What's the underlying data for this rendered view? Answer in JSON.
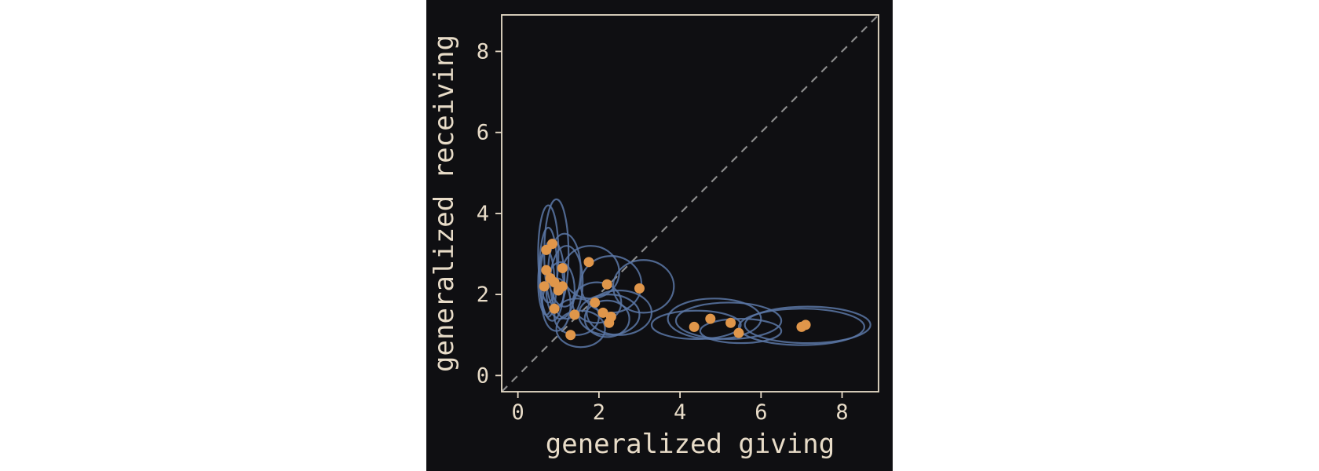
{
  "colors": {
    "background": "#0f0f12",
    "axes": "#e8dcc8",
    "ellipse": "#5b77a6",
    "point": "#e0964a",
    "diagonal": "#8a8a8a"
  },
  "chart_data": {
    "type": "scatter",
    "title": "",
    "xlabel": "generalized giving",
    "ylabel": "generalized receiving",
    "xlim": [
      -0.4,
      8.9
    ],
    "ylim": [
      -0.4,
      8.9
    ],
    "xticks": [
      0,
      2,
      4,
      6,
      8
    ],
    "yticks": [
      0,
      2,
      4,
      6,
      8
    ],
    "grid": false,
    "reference_line": "y = x",
    "points": [
      {
        "x": 0.7,
        "y": 3.1
      },
      {
        "x": 0.85,
        "y": 3.25
      },
      {
        "x": 0.7,
        "y": 2.6
      },
      {
        "x": 0.8,
        "y": 2.4
      },
      {
        "x": 0.9,
        "y": 2.3
      },
      {
        "x": 1.1,
        "y": 2.65
      },
      {
        "x": 0.65,
        "y": 2.2
      },
      {
        "x": 1.0,
        "y": 2.1
      },
      {
        "x": 1.1,
        "y": 2.2
      },
      {
        "x": 0.9,
        "y": 1.65
      },
      {
        "x": 1.75,
        "y": 2.8
      },
      {
        "x": 2.2,
        "y": 2.25
      },
      {
        "x": 3.0,
        "y": 2.15
      },
      {
        "x": 1.9,
        "y": 1.8
      },
      {
        "x": 1.4,
        "y": 1.5
      },
      {
        "x": 2.1,
        "y": 1.55
      },
      {
        "x": 2.3,
        "y": 1.45
      },
      {
        "x": 2.25,
        "y": 1.3
      },
      {
        "x": 1.3,
        "y": 1.0
      },
      {
        "x": 4.35,
        "y": 1.2
      },
      {
        "x": 4.75,
        "y": 1.4
      },
      {
        "x": 5.25,
        "y": 1.3
      },
      {
        "x": 5.45,
        "y": 1.05
      },
      {
        "x": 7.0,
        "y": 1.2
      },
      {
        "x": 7.1,
        "y": 1.25
      }
    ],
    "ellipses": [
      {
        "cx": 0.75,
        "cy": 3.0,
        "rx": 0.25,
        "ry": 1.2
      },
      {
        "cx": 0.95,
        "cy": 3.0,
        "rx": 0.3,
        "ry": 1.35
      },
      {
        "cx": 0.75,
        "cy": 2.55,
        "rx": 0.22,
        "ry": 1.1
      },
      {
        "cx": 0.85,
        "cy": 2.35,
        "rx": 0.3,
        "ry": 1.0
      },
      {
        "cx": 1.15,
        "cy": 2.6,
        "rx": 0.4,
        "ry": 0.9
      },
      {
        "cx": 0.7,
        "cy": 2.3,
        "rx": 0.2,
        "ry": 0.8
      },
      {
        "cx": 1.05,
        "cy": 2.1,
        "rx": 0.35,
        "ry": 0.7
      },
      {
        "cx": 1.2,
        "cy": 2.3,
        "rx": 0.4,
        "ry": 0.9
      },
      {
        "cx": 0.95,
        "cy": 1.75,
        "rx": 0.35,
        "ry": 0.65
      },
      {
        "cx": 1.8,
        "cy": 2.55,
        "rx": 0.7,
        "ry": 0.65
      },
      {
        "cx": 2.3,
        "cy": 2.25,
        "rx": 0.75,
        "ry": 0.7
      },
      {
        "cx": 3.1,
        "cy": 2.2,
        "rx": 0.75,
        "ry": 0.65
      },
      {
        "cx": 1.95,
        "cy": 1.8,
        "rx": 0.6,
        "ry": 0.5
      },
      {
        "cx": 1.45,
        "cy": 1.45,
        "rx": 0.55,
        "ry": 0.45
      },
      {
        "cx": 2.25,
        "cy": 1.5,
        "rx": 0.75,
        "ry": 0.5
      },
      {
        "cx": 2.5,
        "cy": 1.55,
        "rx": 0.8,
        "ry": 0.55
      },
      {
        "cx": 2.2,
        "cy": 1.4,
        "rx": 0.55,
        "ry": 0.45
      },
      {
        "cx": 1.55,
        "cy": 1.15,
        "rx": 0.6,
        "ry": 0.45
      },
      {
        "cx": 4.4,
        "cy": 1.25,
        "rx": 1.1,
        "ry": 0.35
      },
      {
        "cx": 4.85,
        "cy": 1.4,
        "rx": 1.15,
        "ry": 0.5
      },
      {
        "cx": 5.2,
        "cy": 1.35,
        "rx": 1.3,
        "ry": 0.45
      },
      {
        "cx": 5.5,
        "cy": 1.1,
        "rx": 1.0,
        "ry": 0.3
      },
      {
        "cx": 7.0,
        "cy": 1.2,
        "rx": 1.55,
        "ry": 0.45
      },
      {
        "cx": 7.15,
        "cy": 1.25,
        "rx": 1.55,
        "ry": 0.45
      }
    ]
  }
}
